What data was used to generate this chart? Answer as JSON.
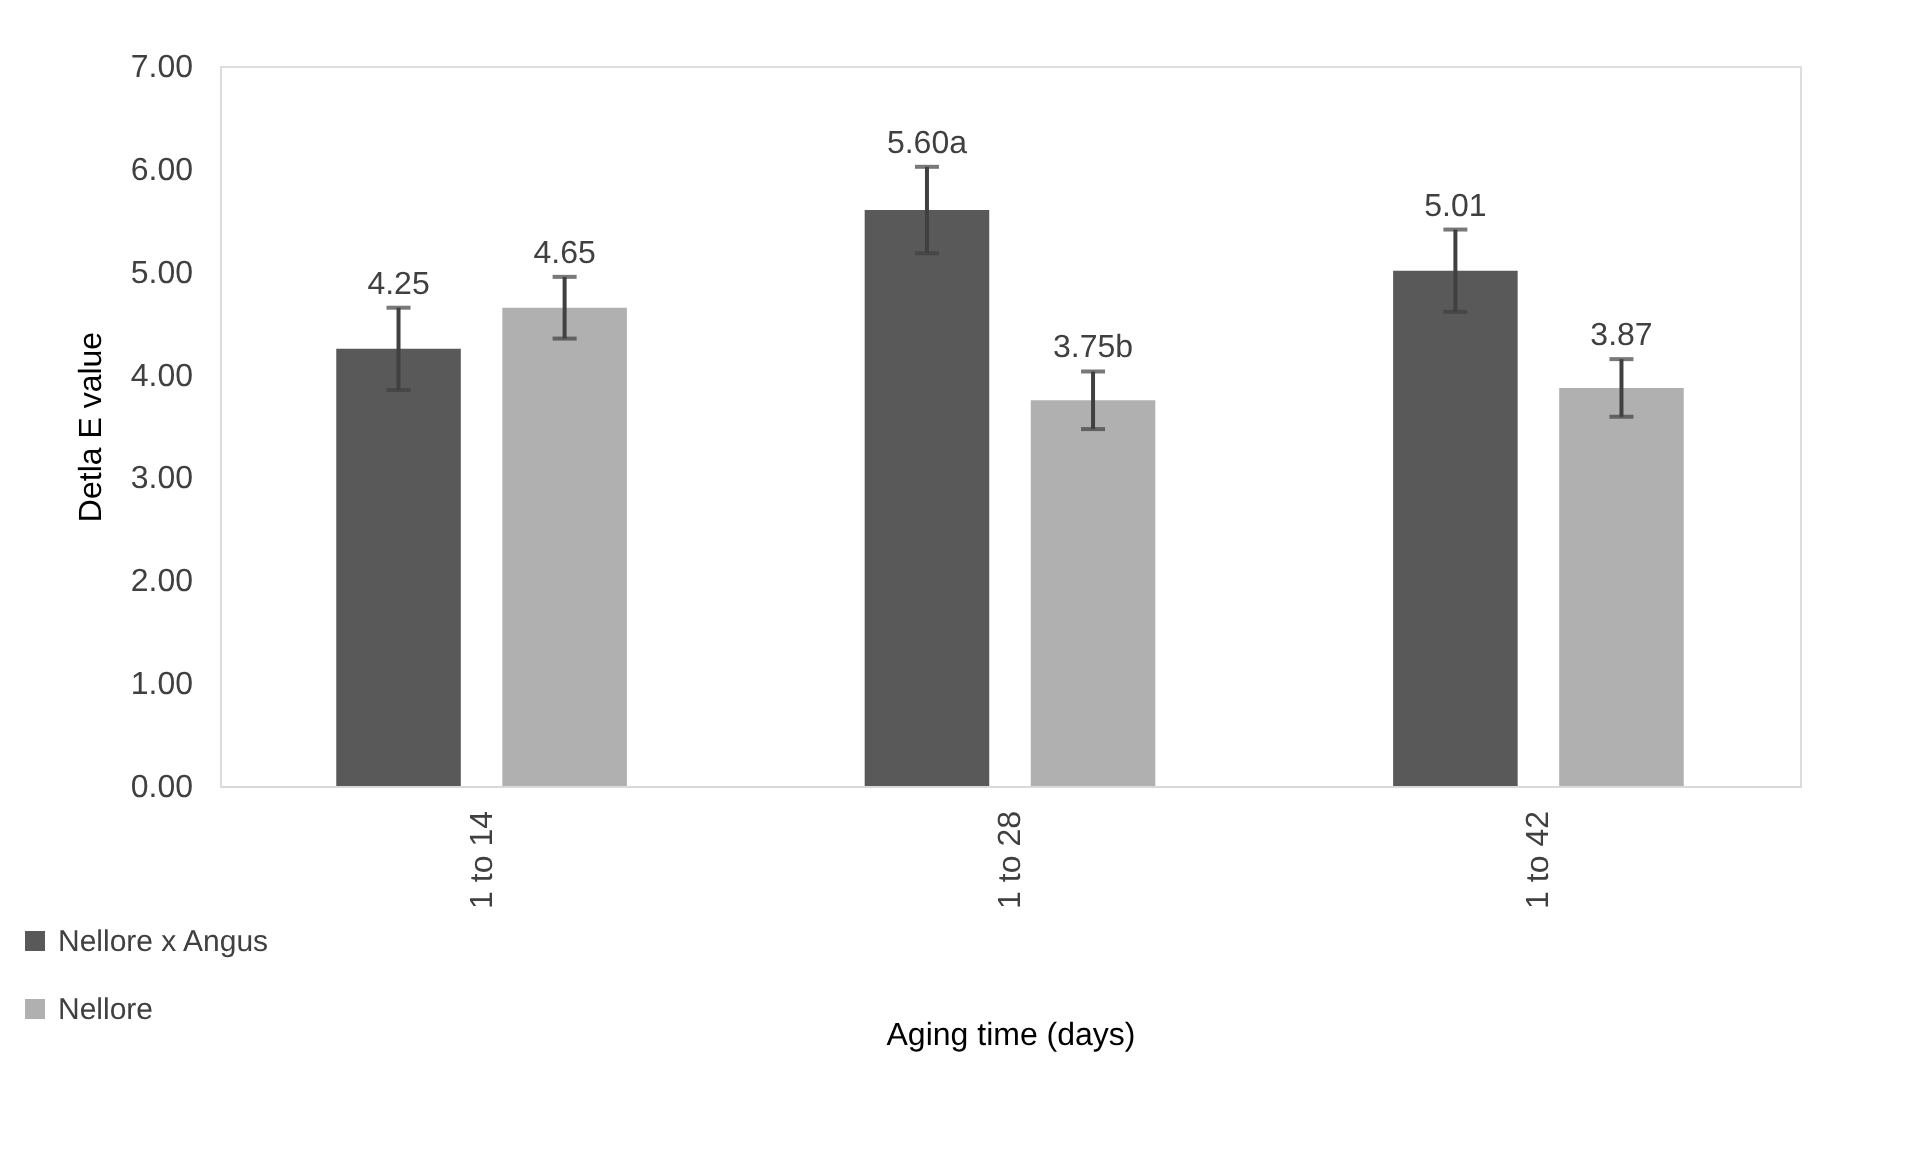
{
  "chart_data": {
    "type": "bar",
    "xlabel": "Aging time (days)",
    "ylabel": "Detla E value",
    "categories": [
      "1 to 14",
      "1 to 28",
      "1 to 42"
    ],
    "series": [
      {
        "name": "Nellore x Angus",
        "color": "#595959",
        "values": [
          4.25,
          5.6,
          5.01
        ],
        "errors": [
          0.4,
          0.42,
          0.4
        ],
        "value_labels": [
          "4.25",
          "5.60a",
          "5.01"
        ]
      },
      {
        "name": "Nellore",
        "color": "#b0b0b0",
        "values": [
          4.65,
          3.75,
          3.87
        ],
        "errors": [
          0.3,
          0.28,
          0.28
        ],
        "value_labels": [
          "4.65",
          "3.75b",
          "3.87"
        ]
      }
    ],
    "ylim": [
      0,
      7
    ],
    "yticks": [
      {
        "value": 0,
        "label": "0.00"
      },
      {
        "value": 1,
        "label": "1.00"
      },
      {
        "value": 2,
        "label": "2.00"
      },
      {
        "value": 3,
        "label": "3.00"
      },
      {
        "value": 4,
        "label": "4.00"
      },
      {
        "value": 5,
        "label": "5.00"
      },
      {
        "value": 6,
        "label": "6.00"
      },
      {
        "value": 7,
        "label": "7.00"
      }
    ],
    "grid": false,
    "legend": "bottom left"
  }
}
